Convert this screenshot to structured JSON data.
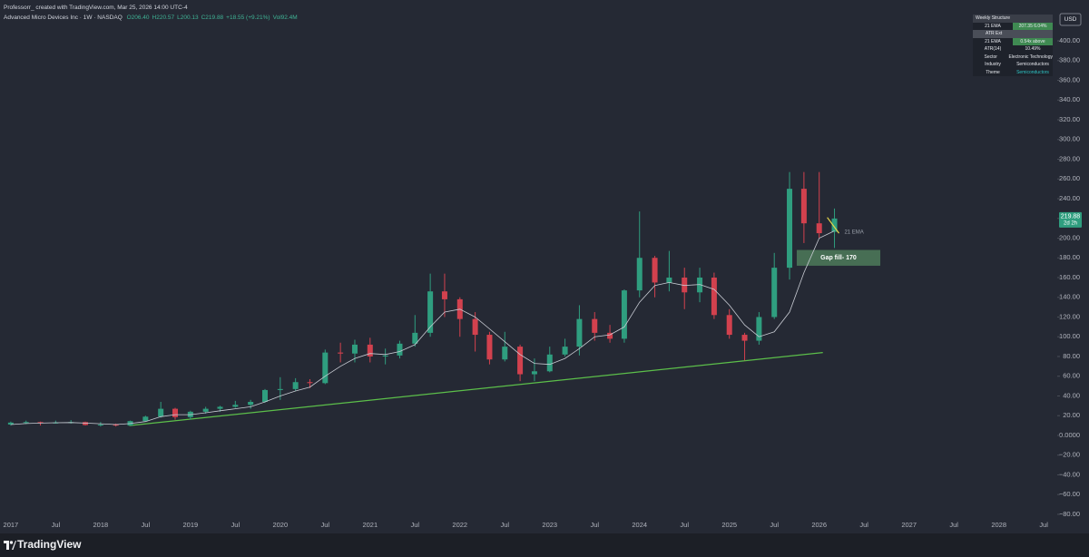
{
  "chart_data": {
    "type": "candlestick",
    "attribution": "Professorr_ created with TradingView.com, Mar 25, 2026 14:00 UTC-4",
    "symbol_line": "Advanced Micro Devices Inc · 1W · NASDAQ",
    "ohlc_legend": [
      "O206.40",
      "H220.57",
      "L200.13",
      "C219.88",
      "+18.55 (+9.21%)"
    ],
    "volume": "Vol92.4M",
    "currency": "USD",
    "countdown": "2d 2h",
    "up_color": "#2f9e7f",
    "down_color": "#d2414e",
    "grid": false,
    "xlim": [
      2016.88,
      2028.65
    ],
    "xticks": [
      2017,
      {
        "value": 2017.5,
        "label": "Jul"
      },
      2018,
      {
        "value": 2018.5,
        "label": "Jul"
      },
      2019,
      {
        "value": 2019.5,
        "label": "Jul"
      },
      2020,
      {
        "value": 2020.5,
        "label": "Jul"
      },
      2021,
      {
        "value": 2021.5,
        "label": "Jul"
      },
      2022,
      {
        "value": 2022.5,
        "label": "Jul"
      },
      2023,
      {
        "value": 2023.5,
        "label": "Jul"
      },
      2024,
      {
        "value": 2024.5,
        "label": "Jul"
      },
      2025,
      {
        "value": 2025.5,
        "label": "Jul"
      },
      2026,
      {
        "value": 2026.5,
        "label": "Jul"
      },
      2027,
      {
        "value": 2027.5,
        "label": "Jul"
      },
      2028,
      {
        "value": 2028.5,
        "label": "Jul"
      }
    ],
    "ylim": [
      -87.4,
      427.6
    ],
    "yticks": [
      {
        "value": -80,
        "label": "−80.00"
      },
      {
        "value": -60,
        "label": "−60.00"
      },
      {
        "value": -40,
        "label": "−40.00"
      },
      {
        "value": -20,
        "label": "−20.00"
      },
      {
        "value": 0,
        "label": "0.0000"
      },
      {
        "value": 20,
        "label": "20.00"
      },
      {
        "value": 40,
        "label": "40.00"
      },
      {
        "value": 60,
        "label": "60.00"
      },
      {
        "value": 80,
        "label": "80.00"
      },
      {
        "value": 100,
        "label": "100.00"
      },
      {
        "value": 120,
        "label": "120.00"
      },
      {
        "value": 140,
        "label": "140.00"
      },
      {
        "value": 160,
        "label": "160.00"
      },
      {
        "value": 180,
        "label": "180.00"
      },
      {
        "value": 200,
        "label": "200.00"
      },
      {
        "value": 220,
        "label": "220.00"
      },
      {
        "value": 240,
        "label": "240.00"
      },
      {
        "value": 260,
        "label": "260.00"
      },
      {
        "value": 280,
        "label": "280.00"
      },
      {
        "value": 300,
        "label": "300.00"
      },
      {
        "value": 320,
        "label": "320.00"
      },
      {
        "value": 340,
        "label": "340.00"
      },
      {
        "value": 360,
        "label": "360.00"
      },
      {
        "value": 380,
        "label": "380.00"
      },
      {
        "value": 400,
        "label": "400.00"
      }
    ],
    "x": [
      2017.0,
      2017.17,
      2017.33,
      2017.5,
      2017.67,
      2017.83,
      2018.0,
      2018.17,
      2018.33,
      2018.5,
      2018.67,
      2018.83,
      2019.0,
      2019.17,
      2019.33,
      2019.5,
      2019.67,
      2019.83,
      2020.0,
      2020.17,
      2020.33,
      2020.5,
      2020.67,
      2020.83,
      2021.0,
      2021.17,
      2021.33,
      2021.5,
      2021.67,
      2021.83,
      2022.0,
      2022.17,
      2022.33,
      2022.5,
      2022.67,
      2022.83,
      2023.0,
      2023.17,
      2023.33,
      2023.5,
      2023.67,
      2023.83,
      2024.0,
      2024.17,
      2024.33,
      2024.5,
      2024.67,
      2024.83,
      2025.0,
      2025.17,
      2025.33,
      2025.5,
      2025.67,
      2025.83,
      2026.0,
      2026.17
    ],
    "open": [
      11,
      13,
      13.5,
      12.5,
      13,
      13.5,
      10.5,
      11,
      10,
      14.5,
      19,
      27,
      18.5,
      24,
      27,
      29,
      31,
      34,
      46,
      47,
      54,
      53,
      84,
      83,
      92,
      80,
      81,
      93,
      104,
      146,
      138,
      118,
      102,
      77,
      90,
      62,
      65,
      82,
      90,
      118,
      104,
      98,
      147,
      180,
      155,
      160,
      145,
      160,
      122,
      102,
      96,
      120,
      170,
      250,
      215,
      206.4
    ],
    "high": [
      14,
      15,
      14,
      15,
      15.5,
      14,
      13.5,
      12,
      15,
      20,
      34,
      28,
      25,
      29,
      30,
      35,
      36,
      47,
      59,
      58,
      57,
      87,
      94,
      97,
      99,
      88,
      96,
      122,
      164,
      164,
      140,
      125,
      105,
      105,
      92,
      78,
      90,
      98,
      132,
      125,
      112,
      148,
      227,
      182,
      187,
      170,
      170,
      165,
      128,
      104,
      125,
      185,
      267,
      267,
      267,
      230
    ],
    "low": [
      10,
      11.5,
      10,
      12,
      12,
      10,
      9,
      9,
      10,
      14,
      18,
      16,
      16,
      22,
      24,
      28,
      27,
      33,
      36,
      45,
      48,
      52,
      74,
      74,
      74,
      72,
      78,
      90,
      100,
      120,
      100,
      85,
      72,
      75,
      55,
      55,
      64,
      80,
      81,
      96,
      94,
      94,
      140,
      140,
      146,
      128,
      135,
      118,
      98,
      76,
      92,
      118,
      158,
      195,
      200,
      190
    ],
    "close": [
      13,
      13.5,
      12.5,
      13,
      13.5,
      10.5,
      11,
      10,
      14.5,
      19,
      27,
      18.5,
      24,
      27,
      29,
      31,
      34,
      46,
      47,
      54,
      53,
      84,
      83,
      92,
      80,
      81,
      93,
      104,
      146,
      138,
      118,
      102,
      77,
      90,
      62,
      65,
      82,
      90,
      118,
      104,
      98,
      147,
      180,
      155,
      160,
      145,
      160,
      122,
      102,
      96,
      120,
      170,
      250,
      215,
      205,
      219.88
    ],
    "ema": {
      "name": "21 EMA",
      "color": "#c9ccd4",
      "values": [
        11,
        12,
        12.5,
        12.8,
        13,
        12.5,
        11.8,
        11,
        12,
        14,
        19,
        21,
        21,
        23,
        25,
        27,
        29,
        34,
        40,
        45,
        49,
        60,
        70,
        78,
        83,
        82,
        85,
        92,
        110,
        125,
        128,
        120,
        108,
        95,
        82,
        73,
        72,
        78,
        88,
        100,
        102,
        110,
        135,
        152,
        155,
        152,
        153,
        148,
        132,
        112,
        100,
        105,
        125,
        165,
        200,
        207.35
      ]
    },
    "trendline": {
      "color": "#5cbf4a",
      "x": [
        2018.32,
        2026.04
      ],
      "values": [
        10,
        84
      ]
    },
    "projection": {
      "color": "#e8d84a",
      "x": [
        2026.09,
        2026.22
      ],
      "values": [
        221,
        205
      ]
    },
    "gap_zone": {
      "label": "Gap fill- 170",
      "color": "#4e7a5a",
      "x": [
        2025.75,
        2026.68
      ],
      "range": [
        172,
        188
      ]
    }
  },
  "table": {
    "title": "Weekly Structure",
    "rows": [
      [
        "21 EMA",
        "207.35  6.04%"
      ],
      [
        "ATR Ext"
      ],
      [
        "21 EMA",
        "0.54x  above"
      ],
      [
        "ATR(14)",
        "10.49%"
      ],
      [
        "Sector",
        "Electronic Technology"
      ],
      [
        "Industry",
        "Semiconductors"
      ],
      [
        "Theme",
        "Semiconductors"
      ]
    ]
  },
  "footer": {
    "brand": "TradingView"
  }
}
